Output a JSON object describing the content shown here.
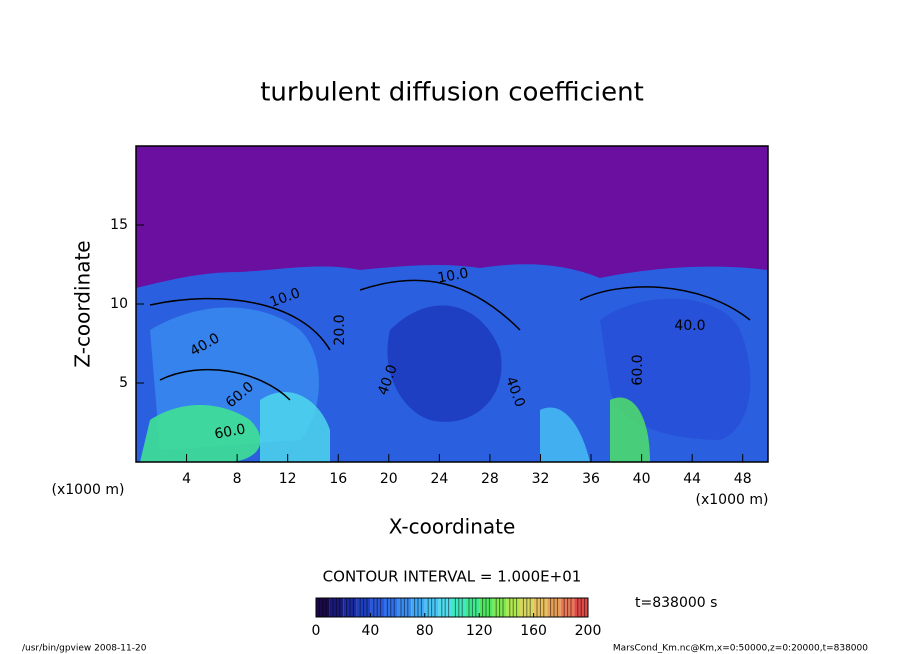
{
  "chart_data": {
    "type": "contour",
    "title": "turbulent diffusion coefficient",
    "x_label": "X-coordinate",
    "y_label": "Z-coordinate",
    "x_unit": "(x1000 m)",
    "y_unit": "(x1000 m)",
    "xlim": [
      0,
      50
    ],
    "xticks": [
      4,
      8,
      12,
      16,
      20,
      24,
      28,
      32,
      36,
      40,
      44,
      48
    ],
    "ylim": [
      0,
      20
    ],
    "yticks": [
      5,
      10,
      15
    ],
    "contour_labels": [
      "40.0",
      "60.0",
      "60.0",
      "10.0",
      "20.0",
      "40.0",
      "40.0",
      "60.0",
      "40.0",
      "10.0"
    ],
    "contour_interval": "CONTOUR INTERVAL = 1.000E+01",
    "time_label": "t=838000 s",
    "colorbar": {
      "lim": [
        0,
        200
      ],
      "ticks": [
        0,
        40,
        80,
        120,
        160,
        200
      ],
      "colors": [
        "#1a0a4a",
        "#1a1a7a",
        "#1a2aa0",
        "#1e40c0",
        "#2a58d8",
        "#3070e8",
        "#3a8cf0",
        "#40a8f4",
        "#48c4f4",
        "#50dcec",
        "#40e8c0",
        "#40e890",
        "#50e860",
        "#80e850",
        "#b0e850",
        "#d8d860",
        "#e8c060",
        "#e8a058",
        "#e87858",
        "#e04848"
      ]
    },
    "footer_left": "/usr/bin/gpview  2008-11-20",
    "footer_right": "MarsCond_Km.nc@Km,x=0:50000,z=0:20000,t=838000"
  }
}
